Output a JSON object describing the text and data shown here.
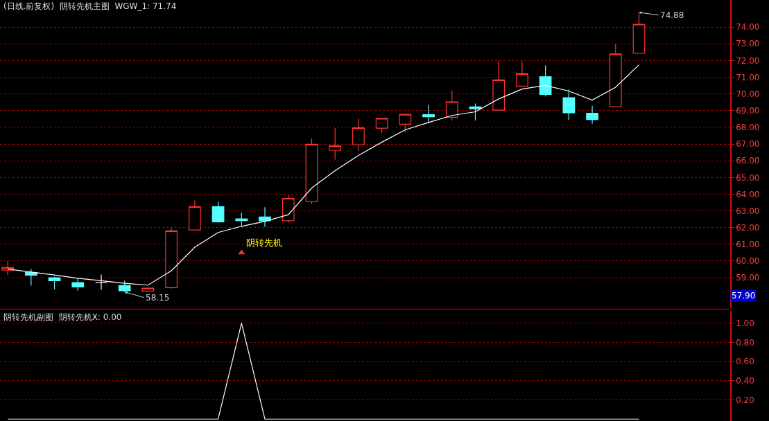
{
  "chart_data": [
    {
      "type": "candlestick",
      "title": "(日线.前复权)",
      "subtitle": "阴转先机主图  WGW_1: 71.74",
      "categories": [
        null,
        null,
        null,
        null,
        null,
        null,
        null,
        null,
        null,
        null,
        null,
        null,
        null,
        null,
        null,
        null,
        null,
        null,
        null,
        null,
        null,
        null,
        null,
        null,
        null,
        null,
        null,
        null
      ],
      "ohlc": [
        [
          59.46,
          60.0,
          59.17,
          59.61
        ],
        [
          59.31,
          59.52,
          58.53,
          59.15
        ],
        [
          59.0,
          59.07,
          58.3,
          58.82
        ],
        [
          58.71,
          58.97,
          58.23,
          58.45
        ],
        [
          58.71,
          59.19,
          58.28,
          58.71
        ],
        [
          58.53,
          58.82,
          58.15,
          58.22
        ],
        [
          58.2,
          58.38,
          58.2,
          58.38
        ],
        [
          58.41,
          61.97,
          58.35,
          61.81
        ],
        [
          61.86,
          63.63,
          61.86,
          63.26
        ],
        [
          63.26,
          63.56,
          62.3,
          62.34
        ],
        [
          62.52,
          62.9,
          62.05,
          62.42
        ],
        [
          62.64,
          63.22,
          62.05,
          62.41
        ],
        [
          62.41,
          63.93,
          62.3,
          63.75
        ],
        [
          63.56,
          67.33,
          63.41,
          66.99
        ],
        [
          66.63,
          67.97,
          66.07,
          66.89
        ],
        [
          66.96,
          68.52,
          66.59,
          67.97
        ],
        [
          67.95,
          68.54,
          67.66,
          68.54
        ],
        [
          68.19,
          68.78,
          67.7,
          68.78
        ],
        [
          68.76,
          69.33,
          68.26,
          68.63
        ],
        [
          68.6,
          70.21,
          68.41,
          69.53
        ],
        [
          69.22,
          69.43,
          68.41,
          69.11
        ],
        [
          69.03,
          71.99,
          69.03,
          70.84
        ],
        [
          70.47,
          71.95,
          70.47,
          71.21
        ],
        [
          71.03,
          71.7,
          69.85,
          69.97
        ],
        [
          69.77,
          70.26,
          68.44,
          68.87
        ],
        [
          68.84,
          69.28,
          68.22,
          68.47
        ],
        [
          69.25,
          73.01,
          69.25,
          72.39
        ],
        [
          72.43,
          74.88,
          72.43,
          74.17
        ]
      ],
      "colors": [
        "#ff3232",
        "#54ffff",
        "#54ffff",
        "#54ffff",
        "#ffffff",
        "#54ffff",
        "#ff3232",
        "#ff3232",
        "#ff3232",
        "#54ffff",
        "#54ffff",
        "#54ffff",
        "#ff3232",
        "#ff3232",
        "#ff3232",
        "#ff3232",
        "#ff3232",
        "#ff3232",
        "#54ffff",
        "#ff3232",
        "#54ffff",
        "#ff3232",
        "#ff3232",
        "#54ffff",
        "#54ffff",
        "#54ffff",
        "#ff3232",
        "#ff3232"
      ],
      "series": [
        {
          "type": "line",
          "color": "#ffffff",
          "values": [
            59.52,
            59.34,
            59.17,
            58.97,
            58.82,
            58.67,
            58.56,
            59.42,
            60.83,
            61.71,
            62.08,
            62.38,
            62.77,
            64.37,
            65.41,
            66.32,
            67.11,
            67.85,
            68.29,
            68.71,
            68.93,
            69.7,
            70.29,
            70.51,
            70.17,
            69.63,
            70.4,
            71.74
          ]
        },
        {
          "name": "阴转先机",
          "type": "scatter",
          "marker": "triangle",
          "color": "#ff3232",
          "values": [
            null,
            null,
            null,
            null,
            null,
            null,
            null,
            null,
            null,
            null,
            60.5,
            null,
            null,
            null,
            null,
            null,
            null,
            null,
            null,
            null,
            null,
            null,
            null,
            null,
            null,
            null,
            null,
            null
          ]
        }
      ],
      "annotations": [
        "74.88",
        "58.15",
        "57.90"
      ],
      "ylim": [
        57.18,
        75.62
      ],
      "yticks": [
        {
          "value": 59,
          "label": "59.00"
        },
        {
          "value": 60,
          "label": "60.00"
        },
        {
          "value": 61,
          "label": "61.00"
        },
        {
          "value": 62,
          "label": "62.00"
        },
        {
          "value": 63,
          "label": "63.00"
        },
        {
          "value": 64,
          "label": "64.00"
        },
        {
          "value": 65,
          "label": "65.00"
        },
        {
          "value": 66,
          "label": "66.00"
        },
        {
          "value": 67,
          "label": "67.00"
        },
        {
          "value": 68,
          "label": "68.00"
        },
        {
          "value": 69,
          "label": "69.00"
        },
        {
          "value": 70,
          "label": "70.00"
        },
        {
          "value": 71,
          "label": "71.00"
        },
        {
          "value": 72,
          "label": "72.00"
        },
        {
          "value": 73,
          "label": "73.00"
        },
        {
          "value": 74,
          "label": "74.00"
        }
      ],
      "grid": "y",
      "legend": false,
      "tick_labels": "y"
    },
    {
      "type": "line",
      "title": "阴转先机副图",
      "subtitle": "阴转先机X: 0.00",
      "categories": [
        null,
        null,
        null,
        null,
        null,
        null,
        null,
        null,
        null,
        null,
        null,
        null,
        null,
        null,
        null,
        null,
        null,
        null,
        null,
        null,
        null,
        null,
        null,
        null,
        null,
        null,
        null,
        null
      ],
      "series": [
        {
          "color": "#ffffff",
          "values": [
            0,
            0,
            0,
            0,
            0,
            0,
            0,
            0,
            0,
            0,
            1,
            0,
            0,
            0,
            0,
            0,
            0,
            0,
            0,
            0,
            0,
            0,
            0,
            0,
            0,
            0,
            0,
            0
          ]
        }
      ],
      "ylim": [
        -0.02,
        1.13
      ],
      "yticks": [
        {
          "value": 0.2,
          "label": "0.20"
        },
        {
          "value": 0.4,
          "label": "0.40"
        },
        {
          "value": 0.6,
          "label": "0.60"
        },
        {
          "value": 0.8,
          "label": "0.80"
        },
        {
          "value": 1.0,
          "label": "1.00"
        }
      ],
      "grid": "y",
      "legend": false,
      "tick_labels": "y"
    }
  ]
}
